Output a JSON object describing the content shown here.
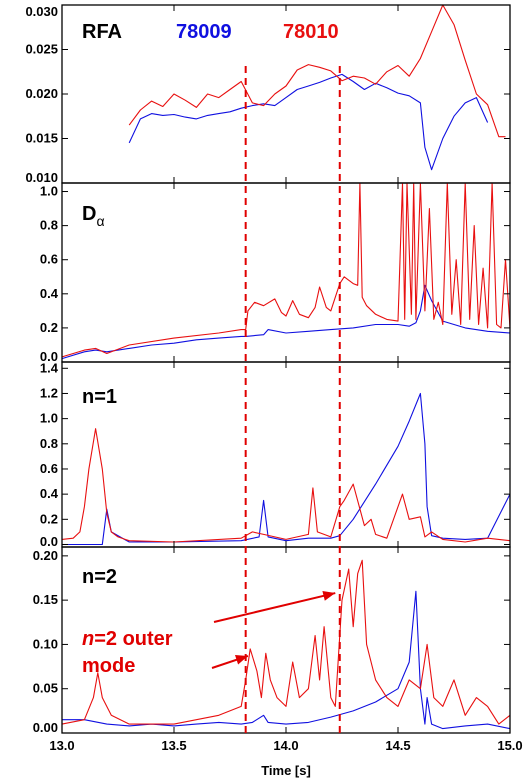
{
  "colors": {
    "shot_78009": "#1010e0",
    "shot_78010": "#e81010",
    "markers": "#e00000"
  },
  "legend": {
    "title": "RFA",
    "shot1": "78009",
    "shot2": "78010"
  },
  "xaxis": {
    "label": "Time [s]",
    "range": [
      13.0,
      15.0
    ],
    "ticks": [
      "13.0",
      "13.5",
      "14.0",
      "14.5",
      "15.0"
    ]
  },
  "markers_x": [
    13.82,
    14.24
  ],
  "annotation": {
    "line1_italic": "n",
    "line1_rest": "=2 outer",
    "line2": "mode"
  },
  "chart_data": [
    {
      "type": "line",
      "panel": "RFA",
      "title": "RFA",
      "ylim": [
        0.01,
        0.03
      ],
      "yticks": [
        "0.010",
        "0.015",
        "0.020",
        "0.025",
        "0.030"
      ],
      "series": [
        {
          "name": "78009",
          "x": [
            13.3,
            13.35,
            13.4,
            13.45,
            13.5,
            13.55,
            13.6,
            13.65,
            13.7,
            13.75,
            13.8,
            13.85,
            13.9,
            13.95,
            14.0,
            14.05,
            14.1,
            14.15,
            14.2,
            14.25,
            14.3,
            14.35,
            14.4,
            14.45,
            14.5,
            14.55,
            14.6,
            14.62,
            14.65,
            14.7,
            14.75,
            14.8,
            14.85,
            14.9
          ],
          "y": [
            0.0145,
            0.0172,
            0.0178,
            0.0176,
            0.0177,
            0.0174,
            0.0172,
            0.0176,
            0.0178,
            0.018,
            0.0184,
            0.0187,
            0.0189,
            0.0187,
            0.0196,
            0.0205,
            0.0209,
            0.0213,
            0.0218,
            0.0222,
            0.0214,
            0.0205,
            0.0212,
            0.0207,
            0.0201,
            0.0198,
            0.019,
            0.014,
            0.0115,
            0.015,
            0.0175,
            0.019,
            0.0196,
            0.0168
          ]
        },
        {
          "name": "78010",
          "x": [
            13.3,
            13.35,
            13.4,
            13.45,
            13.5,
            13.55,
            13.6,
            13.65,
            13.7,
            13.75,
            13.8,
            13.85,
            13.9,
            13.95,
            14.0,
            14.05,
            14.1,
            14.15,
            14.2,
            14.25,
            14.3,
            14.35,
            14.4,
            14.45,
            14.5,
            14.55,
            14.6,
            14.65,
            14.7,
            14.75,
            14.8,
            14.85,
            14.9,
            14.95,
            14.98
          ],
          "y": [
            0.0165,
            0.0182,
            0.0192,
            0.0186,
            0.02,
            0.0193,
            0.0185,
            0.02,
            0.0196,
            0.0205,
            0.0214,
            0.019,
            0.0187,
            0.02,
            0.0209,
            0.0227,
            0.0233,
            0.023,
            0.0226,
            0.0215,
            0.022,
            0.0218,
            0.0211,
            0.0225,
            0.0232,
            0.022,
            0.024,
            0.027,
            0.0302,
            0.0278,
            0.0238,
            0.02,
            0.0188,
            0.0152,
            0.0152
          ]
        }
      ]
    },
    {
      "type": "line",
      "panel": "D_alpha",
      "title_main": "D",
      "title_sub": "α",
      "ylim": [
        0.0,
        1.05
      ],
      "yticks": [
        "0.0",
        "0.2",
        "0.4",
        "0.6",
        "0.8",
        "1.0"
      ],
      "series": [
        {
          "name": "78009",
          "x": [
            13.0,
            13.1,
            13.15,
            13.2,
            13.3,
            13.4,
            13.5,
            13.6,
            13.7,
            13.8,
            13.82,
            13.9,
            13.92,
            14.0,
            14.1,
            14.2,
            14.3,
            14.4,
            14.5,
            14.55,
            14.58,
            14.6,
            14.62,
            14.65,
            14.7,
            14.8,
            14.9,
            15.0
          ],
          "y": [
            0.02,
            0.06,
            0.07,
            0.06,
            0.08,
            0.1,
            0.11,
            0.13,
            0.14,
            0.15,
            0.15,
            0.16,
            0.19,
            0.17,
            0.18,
            0.19,
            0.2,
            0.22,
            0.22,
            0.21,
            0.23,
            0.3,
            0.45,
            0.36,
            0.24,
            0.2,
            0.18,
            0.17
          ]
        },
        {
          "name": "78010",
          "x": [
            13.0,
            13.1,
            13.15,
            13.2,
            13.3,
            13.5,
            13.7,
            13.8,
            13.82,
            13.83,
            13.86,
            13.9,
            13.95,
            13.98,
            14.0,
            14.03,
            14.06,
            14.1,
            14.13,
            14.15,
            14.18,
            14.2,
            14.22,
            14.24,
            14.26,
            14.3,
            14.32,
            14.33,
            14.34,
            14.36,
            14.4,
            14.45,
            14.5,
            14.52,
            14.53,
            14.54,
            14.56,
            14.57,
            14.58,
            14.6,
            14.62,
            14.64,
            14.66,
            14.68,
            14.7,
            14.72,
            14.74,
            14.76,
            14.78,
            14.8,
            14.82,
            14.84,
            14.86,
            14.88,
            14.9,
            14.92,
            14.94,
            14.96,
            14.98,
            15.0
          ],
          "y": [
            0.03,
            0.07,
            0.08,
            0.05,
            0.1,
            0.14,
            0.17,
            0.19,
            0.19,
            0.3,
            0.35,
            0.33,
            0.37,
            0.29,
            0.27,
            0.36,
            0.28,
            0.26,
            0.32,
            0.44,
            0.32,
            0.3,
            0.38,
            0.46,
            0.5,
            0.46,
            0.45,
            1.05,
            0.38,
            0.33,
            0.28,
            0.25,
            0.24,
            1.05,
            0.25,
            1.05,
            0.28,
            1.05,
            0.25,
            1.05,
            0.3,
            0.9,
            0.25,
            0.35,
            0.22,
            1.05,
            0.28,
            0.6,
            0.22,
            1.05,
            0.25,
            0.8,
            0.22,
            0.55,
            0.2,
            1.05,
            0.22,
            0.2,
            0.6,
            0.2
          ]
        }
      ]
    },
    {
      "type": "line",
      "panel": "n=1",
      "title": "n=1",
      "ylim": [
        -0.02,
        1.45
      ],
      "yticks": [
        "0.0",
        "0.2",
        "0.4",
        "0.6",
        "0.8",
        "1.0",
        "1.2",
        "1.4"
      ],
      "series": [
        {
          "name": "78009",
          "x": [
            13.0,
            13.1,
            13.15,
            13.18,
            13.2,
            13.22,
            13.3,
            13.5,
            13.8,
            13.88,
            13.9,
            13.92,
            14.0,
            14.1,
            14.2,
            14.24,
            14.3,
            14.4,
            14.5,
            14.55,
            14.6,
            14.62,
            14.63,
            14.65,
            14.7,
            14.8,
            14.9,
            15.0
          ],
          "y": [
            0.0,
            0.0,
            0.0,
            0.0,
            0.28,
            0.1,
            0.02,
            0.02,
            0.03,
            0.06,
            0.35,
            0.06,
            0.03,
            0.05,
            0.05,
            0.07,
            0.2,
            0.48,
            0.78,
            0.98,
            1.2,
            0.8,
            0.3,
            0.07,
            0.05,
            0.04,
            0.05,
            0.4
          ]
        },
        {
          "name": "78010",
          "x": [
            13.0,
            13.05,
            13.08,
            13.1,
            13.12,
            13.15,
            13.18,
            13.2,
            13.22,
            13.25,
            13.3,
            13.5,
            13.8,
            13.85,
            13.9,
            14.0,
            14.1,
            14.12,
            14.14,
            14.2,
            14.24,
            14.26,
            14.3,
            14.35,
            14.38,
            14.4,
            14.45,
            14.5,
            14.52,
            14.55,
            14.6,
            14.62,
            14.65,
            14.7,
            14.8,
            14.9,
            15.0
          ],
          "y": [
            0.04,
            0.05,
            0.1,
            0.3,
            0.6,
            0.92,
            0.6,
            0.25,
            0.1,
            0.06,
            0.03,
            0.02,
            0.05,
            0.1,
            0.08,
            0.04,
            0.08,
            0.45,
            0.1,
            0.06,
            0.3,
            0.35,
            0.48,
            0.15,
            0.2,
            0.08,
            0.05,
            0.3,
            0.4,
            0.2,
            0.22,
            0.06,
            0.1,
            0.04,
            0.02,
            0.05,
            0.03
          ]
        }
      ]
    },
    {
      "type": "line",
      "panel": "n=2",
      "title": "n=2",
      "ylim": [
        0.0,
        0.21
      ],
      "yticks": [
        "0.00",
        "0.05",
        "0.10",
        "0.15",
        "0.20"
      ],
      "series": [
        {
          "name": "78009",
          "x": [
            13.0,
            13.1,
            13.2,
            13.3,
            13.4,
            13.5,
            13.6,
            13.7,
            13.8,
            13.85,
            13.9,
            13.92,
            14.0,
            14.1,
            14.2,
            14.3,
            14.4,
            14.5,
            14.55,
            14.58,
            14.6,
            14.62,
            14.63,
            14.65,
            14.7,
            14.8,
            14.9,
            15.0
          ],
          "y": [
            0.015,
            0.015,
            0.01,
            0.008,
            0.01,
            0.008,
            0.01,
            0.012,
            0.01,
            0.012,
            0.02,
            0.012,
            0.01,
            0.012,
            0.018,
            0.025,
            0.035,
            0.05,
            0.08,
            0.16,
            0.05,
            0.01,
            0.04,
            0.01,
            0.005,
            0.008,
            0.01,
            0.005
          ]
        },
        {
          "name": "78010",
          "x": [
            13.0,
            13.1,
            13.14,
            13.16,
            13.18,
            13.22,
            13.3,
            13.5,
            13.7,
            13.8,
            13.82,
            13.84,
            13.87,
            13.89,
            13.91,
            13.93,
            13.96,
            14.0,
            14.03,
            14.06,
            14.1,
            14.13,
            14.15,
            14.17,
            14.2,
            14.22,
            14.25,
            14.28,
            14.3,
            14.32,
            14.34,
            14.36,
            14.4,
            14.45,
            14.5,
            14.55,
            14.6,
            14.63,
            14.66,
            14.7,
            14.75,
            14.8,
            14.85,
            14.9,
            14.95,
            15.0
          ],
          "y": [
            0.01,
            0.015,
            0.04,
            0.068,
            0.04,
            0.02,
            0.01,
            0.01,
            0.02,
            0.03,
            0.06,
            0.095,
            0.07,
            0.04,
            0.09,
            0.06,
            0.04,
            0.03,
            0.08,
            0.04,
            0.05,
            0.11,
            0.06,
            0.12,
            0.04,
            0.03,
            0.15,
            0.185,
            0.12,
            0.18,
            0.195,
            0.1,
            0.06,
            0.04,
            0.03,
            0.06,
            0.05,
            0.1,
            0.04,
            0.03,
            0.06,
            0.02,
            0.04,
            0.03,
            0.01,
            0.02
          ]
        }
      ]
    }
  ]
}
